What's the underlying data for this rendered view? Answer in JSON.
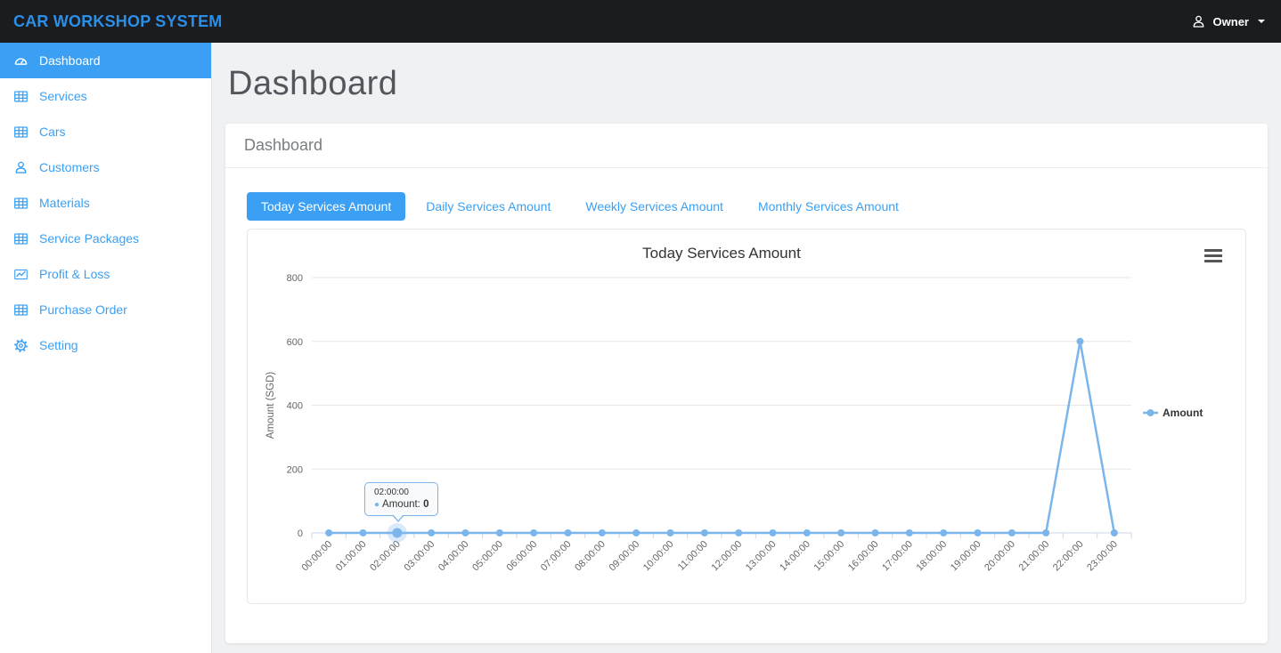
{
  "theme": {
    "accent": "#3ba0f4",
    "navbar_bg": "#1a1c1f",
    "brand_color": "#2b8fe8",
    "page_bg": "#f0f1f3",
    "series_color": "#7cb5ec"
  },
  "navbar": {
    "brand": "CAR WORKSHOP SYSTEM",
    "user": "Owner"
  },
  "sidebar": {
    "items": [
      {
        "label": "Dashboard",
        "icon": "gauge-icon",
        "active": true
      },
      {
        "label": "Services",
        "icon": "table-icon",
        "active": false
      },
      {
        "label": "Cars",
        "icon": "table-icon",
        "active": false
      },
      {
        "label": "Customers",
        "icon": "user-icon",
        "active": false
      },
      {
        "label": "Materials",
        "icon": "table-icon",
        "active": false
      },
      {
        "label": "Service Packages",
        "icon": "table-icon",
        "active": false
      },
      {
        "label": "Profit & Loss",
        "icon": "chart-line-icon",
        "active": false
      },
      {
        "label": "Purchase Order",
        "icon": "table-icon",
        "active": false
      },
      {
        "label": "Setting",
        "icon": "gear-icon",
        "active": false
      }
    ]
  },
  "page": {
    "title": "Dashboard"
  },
  "panel": {
    "heading": "Dashboard"
  },
  "tabs": [
    {
      "label": "Today Services Amount",
      "active": true
    },
    {
      "label": "Daily Services Amount",
      "active": false
    },
    {
      "label": "Weekly Services Amount",
      "active": false
    },
    {
      "label": "Monthly Services Amount",
      "active": false
    }
  ],
  "chart_data": {
    "type": "line",
    "title": "Today Services Amount",
    "xlabel": "",
    "ylabel": "Amount (SGD)",
    "categories": [
      "00:00:00",
      "01:00:00",
      "02:00:00",
      "03:00:00",
      "04:00:00",
      "05:00:00",
      "06:00:00",
      "07:00:00",
      "08:00:00",
      "09:00:00",
      "10:00:00",
      "11:00:00",
      "12:00:00",
      "13:00:00",
      "14:00:00",
      "15:00:00",
      "16:00:00",
      "17:00:00",
      "18:00:00",
      "19:00:00",
      "20:00:00",
      "21:00:00",
      "22:00:00",
      "23:00:00"
    ],
    "series": [
      {
        "name": "Amount",
        "values": [
          0,
          0,
          0,
          0,
          0,
          0,
          0,
          0,
          0,
          0,
          0,
          0,
          0,
          0,
          0,
          0,
          0,
          0,
          0,
          0,
          0,
          0,
          600,
          0
        ]
      }
    ],
    "ylim": [
      0,
      800
    ],
    "yticks": [
      0,
      200,
      400,
      600,
      800
    ],
    "grid": true,
    "legend_position": "right",
    "color": "#7cb5ec",
    "tooltip": {
      "header": "02:00:00",
      "series_label": "Amount:",
      "value": "0",
      "point_index": 2
    }
  }
}
